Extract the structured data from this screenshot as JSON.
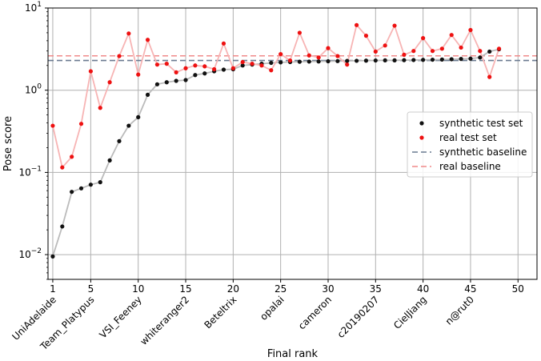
{
  "chart_data": {
    "type": "scatter",
    "xlabel": "Final rank",
    "ylabel": "Pose score",
    "yscale": "log",
    "xlim": [
      0.5,
      52
    ],
    "ylim": [
      0.005,
      10
    ],
    "grid": true,
    "legend_position": "center-right",
    "x_ticks": [
      1,
      5,
      10,
      15,
      20,
      25,
      30,
      35,
      40,
      45,
      50
    ],
    "y_ticks": [
      {
        "value": 0.01,
        "base": "10",
        "exp": "−2"
      },
      {
        "value": 0.1,
        "base": "10",
        "exp": "−1"
      },
      {
        "value": 1,
        "base": "10",
        "exp": "0"
      },
      {
        "value": 10,
        "base": "10",
        "exp": "1"
      }
    ],
    "team_labels": [
      {
        "rank": 1,
        "label": "UniAdelaide"
      },
      {
        "rank": 5,
        "label": "Team_Platypus"
      },
      {
        "rank": 10,
        "label": "VSI_Feeney"
      },
      {
        "rank": 15,
        "label": "whiteranger2"
      },
      {
        "rank": 20,
        "label": "Beteltrix"
      },
      {
        "rank": 25,
        "label": "opalai"
      },
      {
        "rank": 30,
        "label": "cameron"
      },
      {
        "rank": 35,
        "label": "c20190207"
      },
      {
        "rank": 40,
        "label": "CielJiang"
      },
      {
        "rank": 45,
        "label": "n@rut0"
      }
    ],
    "series": [
      {
        "name": "synthetic test set",
        "color": "#111111",
        "line_color": "#bbbbbb",
        "x": [
          1,
          2,
          3,
          4,
          5,
          6,
          7,
          8,
          9,
          10,
          11,
          12,
          13,
          14,
          15,
          16,
          17,
          18,
          19,
          20,
          21,
          22,
          23,
          24,
          25,
          26,
          27,
          28,
          29,
          30,
          31,
          32,
          33,
          34,
          35,
          36,
          37,
          38,
          39,
          40,
          41,
          42,
          43,
          44,
          45,
          46,
          47,
          48
        ],
        "values": [
          0.0095,
          0.022,
          0.058,
          0.064,
          0.071,
          0.076,
          0.14,
          0.24,
          0.37,
          0.47,
          0.88,
          1.18,
          1.25,
          1.3,
          1.33,
          1.53,
          1.6,
          1.7,
          1.78,
          1.8,
          2.0,
          2.05,
          2.1,
          2.15,
          2.18,
          2.2,
          2.22,
          2.23,
          2.24,
          2.25,
          2.26,
          2.27,
          2.28,
          2.29,
          2.3,
          2.31,
          2.31,
          2.32,
          2.33,
          2.34,
          2.35,
          2.36,
          2.38,
          2.4,
          2.42,
          2.5,
          2.95,
          3.15
        ]
      },
      {
        "name": "real test set",
        "color": "#ee1111",
        "line_color": "#f7b4b4",
        "x": [
          1,
          2,
          3,
          4,
          5,
          6,
          7,
          8,
          9,
          10,
          11,
          12,
          13,
          14,
          15,
          16,
          17,
          18,
          19,
          20,
          21,
          22,
          23,
          24,
          25,
          26,
          27,
          28,
          29,
          30,
          31,
          32,
          33,
          34,
          35,
          36,
          37,
          38,
          39,
          40,
          41,
          42,
          43,
          44,
          45,
          46,
          47,
          48
        ],
        "values": [
          0.37,
          0.115,
          0.155,
          0.39,
          1.7,
          0.61,
          1.25,
          2.6,
          4.9,
          1.55,
          4.1,
          2.05,
          2.1,
          1.65,
          1.85,
          2.0,
          1.95,
          1.8,
          3.7,
          1.85,
          2.2,
          2.1,
          2.0,
          1.75,
          2.75,
          2.3,
          5.0,
          2.65,
          2.5,
          3.25,
          2.6,
          2.05,
          6.2,
          4.6,
          2.95,
          3.5,
          6.1,
          2.7,
          3.0,
          4.3,
          3.0,
          3.2,
          4.7,
          3.3,
          5.4,
          3.0,
          1.45,
          3.2
        ]
      }
    ],
    "baselines": [
      {
        "name": "synthetic baseline",
        "value": 2.3,
        "color": "#6a7a90"
      },
      {
        "name": "real baseline",
        "value": 2.62,
        "color": "#f08a8a"
      }
    ]
  }
}
